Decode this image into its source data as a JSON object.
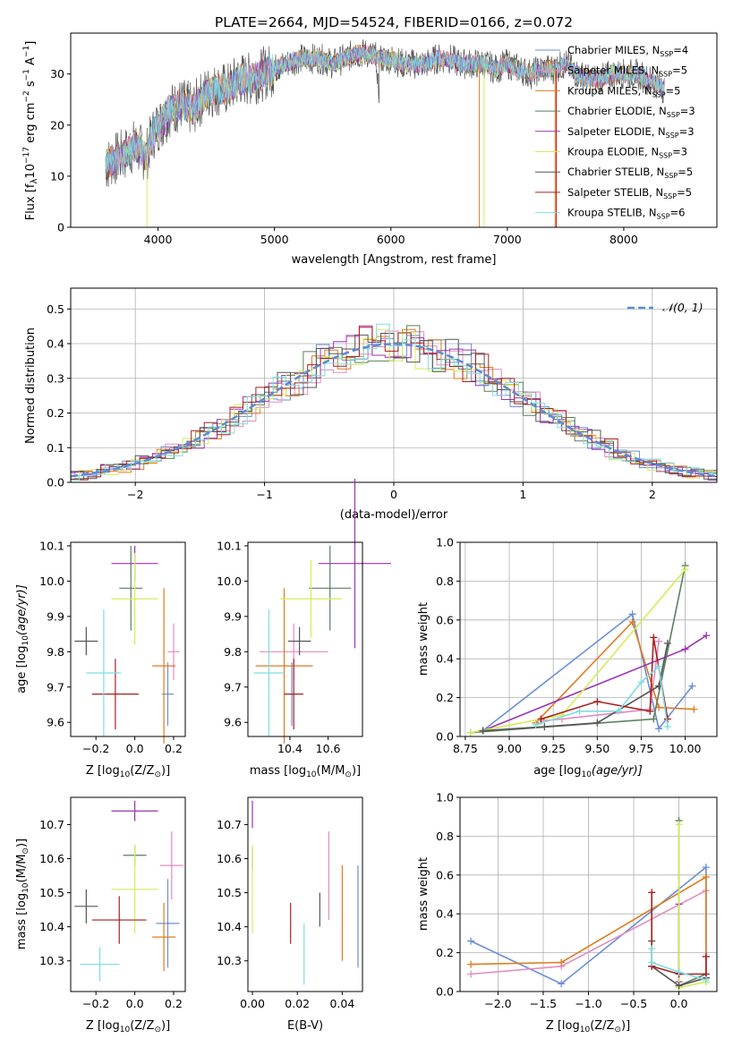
{
  "figure": {
    "title": "PLATE=2664, MJD=54524, FIBERID=0166, z=0.072"
  },
  "colors": {
    "chabrier_miles": "#6a8fd8",
    "salpeter_miles": "#e38bc1",
    "kroupa_miles": "#e07b1f",
    "chabrier_elodie": "#5a7f5f",
    "salpeter_elodie": "#9b33b5",
    "kroupa_elodie": "#d4ec5a",
    "chabrier_stelib": "#555555",
    "salpeter_stelib": "#aa1f1f",
    "kroupa_stelib": "#7fdde2"
  },
  "chart_data": [
    {
      "id": "spectrum",
      "type": "line",
      "xlabel": "wavelength [Angstrom, rest frame]",
      "ylabel_main": "Flux [f",
      "ylabel_tail": "10",
      "ylabel_exp1": "−17",
      "ylabel_mid": " erg cm",
      "ylabel_exp2": "−2",
      "ylabel_s": " s",
      "ylabel_exp3": "−1",
      "ylabel_a": " A",
      "ylabel_exp4": "−1",
      "ylabel_end": "]",
      "xlim": [
        3250,
        8800
      ],
      "ylim": [
        0,
        38
      ],
      "xticks": [
        4000,
        5000,
        6000,
        7000,
        8000
      ],
      "yticks": [
        0,
        10,
        20,
        30
      ],
      "grid": false,
      "legend_position": "top-right",
      "envelope": {
        "x": [
          3550,
          3600,
          3700,
          3800,
          3900,
          3950,
          4000,
          4050,
          4100,
          4200,
          4300,
          4400,
          4500,
          4600,
          4700,
          4800,
          4900,
          5000,
          5100,
          5200,
          5300,
          5400,
          5500,
          5600,
          5700,
          5800,
          5900,
          6000,
          6100,
          6200,
          6300,
          6400,
          6500,
          6600,
          6700,
          6800,
          6900,
          7000,
          7100,
          7200,
          7300,
          7400,
          7500,
          7600,
          7700,
          7800,
          7900,
          8000,
          8100,
          8200,
          8300,
          8350
        ],
        "y": [
          12,
          13,
          14,
          16,
          14,
          18,
          20,
          21,
          23,
          24,
          23,
          26,
          27,
          27,
          29,
          29,
          30,
          31,
          32,
          33,
          33,
          33,
          32,
          33,
          34,
          34,
          33,
          33,
          32,
          32,
          32,
          33,
          33,
          32,
          32,
          32,
          31,
          32,
          31,
          30,
          31,
          31,
          32,
          30,
          29,
          29,
          30,
          30,
          30,
          29,
          28,
          27
        ]
      },
      "legend": [
        {
          "label": "Chabrier MILES, N",
          "sub": "SSP",
          "tail": "=4",
          "color_key": "chabrier_miles"
        },
        {
          "label": "Salpeter MILES, N",
          "sub": "SSP",
          "tail": "=5",
          "color_key": "salpeter_miles"
        },
        {
          "label": "Kroupa MILES, N",
          "sub": "SSP",
          "tail": "=5",
          "color_key": "kroupa_miles"
        },
        {
          "label": "Chabrier ELODIE, N",
          "sub": "SSP",
          "tail": "=3",
          "color_key": "chabrier_elodie"
        },
        {
          "label": "Salpeter ELODIE, N",
          "sub": "SSP",
          "tail": "=3",
          "color_key": "salpeter_elodie"
        },
        {
          "label": "Kroupa ELODIE, N",
          "sub": "SSP",
          "tail": "=3",
          "color_key": "kroupa_elodie"
        },
        {
          "label": "Chabrier STELIB, N",
          "sub": "SSP",
          "tail": "=5",
          "color_key": "chabrier_stelib"
        },
        {
          "label": "Salpeter STELIB, N",
          "sub": "SSP",
          "tail": "=5",
          "color_key": "salpeter_stelib"
        },
        {
          "label": "Kroupa STELIB, N",
          "sub": "SSP",
          "tail": "=6",
          "color_key": "kroupa_stelib"
        }
      ]
    },
    {
      "id": "residuals",
      "type": "histogram",
      "xlabel": "(data-model)/error",
      "ylabel": "Normed distribution",
      "xlim": [
        -2.5,
        2.5
      ],
      "ylim": [
        0,
        0.56
      ],
      "xticks": [
        -2,
        -1,
        0,
        1,
        2
      ],
      "yticks": [
        0.0,
        0.1,
        0.2,
        0.3,
        0.4,
        0.5
      ],
      "grid": true,
      "legend_position": "top-right",
      "legend_label": "𝒩(0, 1)",
      "bin_width": 0.1
    },
    {
      "id": "age_vs_z",
      "type": "scatter",
      "xlabel": "Z [log",
      "ylabel": "age  [log",
      "xlim": [
        -0.33,
        0.26
      ],
      "ylim": [
        9.56,
        10.11
      ],
      "xticks": [
        -0.2,
        0.0,
        0.2
      ],
      "yticks": [
        9.6,
        9.7,
        9.8,
        9.9,
        10.0,
        10.1
      ],
      "grid": false,
      "points": [
        {
          "x": 0.17,
          "xerr": 0.03,
          "y": 9.68,
          "yerr": 0.09,
          "color_key": "chabrier_miles"
        },
        {
          "x": 0.2,
          "xerr": 0.03,
          "y": 9.8,
          "yerr": 0.08,
          "color_key": "salpeter_miles"
        },
        {
          "x": 0.15,
          "xerr": 0.06,
          "y": 9.76,
          "yerr": 0.22,
          "color_key": "kroupa_miles"
        },
        {
          "x": -0.02,
          "xerr": 0.06,
          "y": 9.98,
          "yerr": 0.12,
          "color_key": "chabrier_elodie"
        },
        {
          "x": 0.0,
          "xerr": 0.12,
          "y": 10.05,
          "yerr": 0.05,
          "color_key": "salpeter_elodie"
        },
        {
          "x": 0.0,
          "xerr": 0.12,
          "y": 9.95,
          "yerr": 0.13,
          "color_key": "kroupa_elodie"
        },
        {
          "x": -0.25,
          "xerr": 0.06,
          "y": 9.83,
          "yerr": 0.04,
          "color_key": "chabrier_stelib"
        },
        {
          "x": -0.1,
          "xerr": 0.12,
          "y": 9.68,
          "yerr": 0.1,
          "color_key": "salpeter_stelib"
        },
        {
          "x": -0.16,
          "xerr": 0.09,
          "y": 9.74,
          "yerr": 0.18,
          "color_key": "kroupa_stelib"
        }
      ]
    },
    {
      "id": "age_vs_mass",
      "type": "scatter",
      "xlabel": "mass [log",
      "xlim": [
        10.18,
        10.78
      ],
      "ylim": [
        9.56,
        10.11
      ],
      "xticks": [
        10.4,
        10.6
      ],
      "yticks": [
        9.6,
        9.7,
        9.8,
        9.9,
        10.0,
        10.1
      ],
      "grid": false,
      "points": [
        {
          "x": 10.41,
          "xerr": 0.01,
          "y": 9.68,
          "yerr": 0.09,
          "color_key": "chabrier_miles"
        },
        {
          "x": 10.42,
          "xerr": 0.18,
          "y": 9.8,
          "yerr": 0.08,
          "color_key": "salpeter_miles"
        },
        {
          "x": 10.37,
          "xerr": 0.15,
          "y": 9.76,
          "yerr": 0.22,
          "color_key": "kroupa_miles"
        },
        {
          "x": 10.61,
          "xerr": 0.11,
          "y": 9.98,
          "yerr": 0.12,
          "color_key": "chabrier_elodie"
        },
        {
          "x": 10.74,
          "xerr": 0.19,
          "y": 10.05,
          "yerr": 0.24,
          "color_key": "salpeter_elodie"
        },
        {
          "x": 10.51,
          "xerr": 0.16,
          "y": 9.95,
          "yerr": 0.11,
          "color_key": "kroupa_elodie"
        },
        {
          "x": 10.45,
          "xerr": 0.06,
          "y": 9.83,
          "yerr": 0.04,
          "color_key": "chabrier_stelib"
        },
        {
          "x": 10.42,
          "xerr": 0.05,
          "y": 9.68,
          "yerr": 0.1,
          "color_key": "salpeter_stelib"
        },
        {
          "x": 10.29,
          "xerr": 0.08,
          "y": 9.74,
          "yerr": 0.18,
          "color_key": "kroupa_stelib"
        }
      ]
    },
    {
      "id": "weight_vs_age",
      "type": "line",
      "xlabel": "age  [log",
      "ylabel": "mass weight",
      "xlim": [
        8.72,
        10.18
      ],
      "ylim": [
        0,
        1
      ],
      "xticks": [
        8.75,
        9.0,
        9.25,
        9.5,
        9.75,
        10.0
      ],
      "yticks": [
        0.0,
        0.2,
        0.4,
        0.6,
        0.8,
        1.0
      ],
      "grid": true,
      "series": [
        {
          "color_key": "chabrier_miles",
          "x": [
            8.85,
            9.7,
            9.85,
            10.04
          ],
          "y": [
            0.03,
            0.63,
            0.04,
            0.26
          ]
        },
        {
          "color_key": "salpeter_miles",
          "x": [
            9.18,
            9.3,
            9.8,
            9.85
          ],
          "y": [
            0.08,
            0.09,
            0.14,
            0.49
          ]
        },
        {
          "color_key": "kroupa_miles",
          "x": [
            9.15,
            9.7,
            9.85,
            10.05
          ],
          "y": [
            0.07,
            0.59,
            0.15,
            0.14
          ]
        },
        {
          "color_key": "chabrier_elodie",
          "x": [
            8.78,
            9.82,
            10.0
          ],
          "y": [
            0.02,
            0.09,
            0.88
          ]
        },
        {
          "color_key": "salpeter_elodie",
          "x": [
            8.85,
            10.0,
            10.12
          ],
          "y": [
            0.03,
            0.45,
            0.52
          ]
        },
        {
          "color_key": "kroupa_elodie",
          "x": [
            8.78,
            9.3,
            10.0
          ],
          "y": [
            0.02,
            0.11,
            0.86
          ]
        },
        {
          "color_key": "chabrier_stelib",
          "x": [
            8.85,
            9.2,
            9.5,
            9.85,
            9.9
          ],
          "y": [
            0.03,
            0.05,
            0.07,
            0.26,
            0.48
          ]
        },
        {
          "color_key": "salpeter_stelib",
          "x": [
            9.18,
            9.5,
            9.8,
            9.82,
            9.9
          ],
          "y": [
            0.09,
            0.18,
            0.13,
            0.51,
            0.09
          ]
        },
        {
          "color_key": "kroupa_stelib",
          "x": [
            9.15,
            9.4,
            9.62,
            9.75,
            9.85,
            9.9
          ],
          "y": [
            0.06,
            0.13,
            0.13,
            0.28,
            0.36,
            0.05
          ]
        }
      ]
    },
    {
      "id": "mass_vs_z",
      "type": "scatter",
      "xlabel": "Z [log",
      "ylabel": "mass [log",
      "xlim": [
        -0.33,
        0.26
      ],
      "ylim": [
        10.21,
        10.78
      ],
      "xticks": [
        -0.2,
        0.0,
        0.2
      ],
      "yticks": [
        10.3,
        10.4,
        10.5,
        10.6,
        10.7
      ],
      "grid": false,
      "points": [
        {
          "x": 0.17,
          "xerr": 0.06,
          "y": 10.41,
          "yerr": 0.13,
          "color_key": "chabrier_miles"
        },
        {
          "x": 0.19,
          "xerr": 0.06,
          "y": 10.58,
          "yerr": 0.1,
          "color_key": "salpeter_miles"
        },
        {
          "x": 0.15,
          "xerr": 0.06,
          "y": 10.37,
          "yerr": 0.1,
          "color_key": "kroupa_miles"
        },
        {
          "x": 0.0,
          "xerr": 0.06,
          "y": 10.61,
          "yerr": 0.03,
          "color_key": "chabrier_elodie"
        },
        {
          "x": 0.0,
          "xerr": 0.12,
          "y": 10.74,
          "yerr": 0.03,
          "color_key": "salpeter_elodie"
        },
        {
          "x": 0.0,
          "xerr": 0.12,
          "y": 10.51,
          "yerr": 0.13,
          "color_key": "kroupa_elodie"
        },
        {
          "x": -0.25,
          "xerr": 0.06,
          "y": 10.46,
          "yerr": 0.05,
          "color_key": "chabrier_stelib"
        },
        {
          "x": -0.08,
          "xerr": 0.14,
          "y": 10.42,
          "yerr": 0.07,
          "color_key": "salpeter_stelib"
        },
        {
          "x": -0.18,
          "xerr": 0.1,
          "y": 10.29,
          "yerr": 0.05,
          "color_key": "kroupa_stelib"
        }
      ]
    },
    {
      "id": "mass_vs_ebv",
      "type": "scatter",
      "xlabel": "E(B-V)",
      "xlim": [
        -0.002,
        0.049
      ],
      "ylim": [
        10.21,
        10.78
      ],
      "xticks": [
        0.0,
        0.02,
        0.04
      ],
      "yticks": [
        10.3,
        10.4,
        10.5,
        10.6,
        10.7
      ],
      "grid": false,
      "points": [
        {
          "x": 0.047,
          "y": 10.43,
          "yerr": 0.15,
          "color_key": "chabrier_miles"
        },
        {
          "x": 0.034,
          "y": 10.55,
          "yerr": 0.13,
          "color_key": "salpeter_miles"
        },
        {
          "x": 0.04,
          "y": 10.44,
          "yerr": 0.14,
          "color_key": "kroupa_miles"
        },
        {
          "x": 0.0,
          "y": 10.6,
          "yerr": 0.03,
          "color_key": "chabrier_elodie"
        },
        {
          "x": 0.0,
          "y": 10.73,
          "yerr": 0.04,
          "color_key": "salpeter_elodie"
        },
        {
          "x": 0.0,
          "y": 10.51,
          "yerr": 0.13,
          "color_key": "kroupa_elodie"
        },
        {
          "x": 0.03,
          "y": 10.45,
          "yerr": 0.05,
          "color_key": "chabrier_stelib"
        },
        {
          "x": 0.017,
          "y": 10.41,
          "yerr": 0.06,
          "color_key": "salpeter_stelib"
        },
        {
          "x": 0.023,
          "y": 10.32,
          "yerr": 0.09,
          "color_key": "kroupa_stelib"
        }
      ]
    },
    {
      "id": "weight_vs_z",
      "type": "line",
      "xlabel": "Z [log",
      "ylabel": "mass weight",
      "xlim": [
        -2.42,
        0.42
      ],
      "ylim": [
        0,
        1
      ],
      "xticks": [
        -2.0,
        -1.5,
        -1.0,
        -0.5,
        0.0
      ],
      "yticks": [
        0.0,
        0.2,
        0.4,
        0.6,
        0.8,
        1.0
      ],
      "grid": true,
      "series": [
        {
          "color_key": "chabrier_miles",
          "x": [
            -2.3,
            -1.3,
            0.3,
            0.3
          ],
          "y": [
            0.26,
            0.04,
            0.64,
            0.07
          ]
        },
        {
          "color_key": "salpeter_miles",
          "x": [
            -2.3,
            -1.3,
            0.3
          ],
          "y": [
            0.09,
            0.13,
            0.52
          ]
        },
        {
          "color_key": "kroupa_miles",
          "x": [
            -2.3,
            -1.3,
            0.3,
            0.3
          ],
          "y": [
            0.14,
            0.15,
            0.59,
            0.05
          ]
        },
        {
          "color_key": "chabrier_elodie",
          "x": [
            0.0,
            0.0,
            0.3
          ],
          "y": [
            0.88,
            0.03,
            0.09
          ]
        },
        {
          "color_key": "salpeter_elodie",
          "x": [
            0.0,
            0.0
          ],
          "y": [
            0.45,
            0.05
          ]
        },
        {
          "color_key": "kroupa_elodie",
          "x": [
            0.0,
            0.0,
            0.3
          ],
          "y": [
            0.86,
            0.02,
            0.05
          ]
        },
        {
          "color_key": "chabrier_stelib",
          "x": [
            -0.3,
            -0.3,
            0.0,
            0.3
          ],
          "y": [
            0.26,
            0.13,
            0.03,
            0.07
          ]
        },
        {
          "color_key": "salpeter_stelib",
          "x": [
            -0.3,
            -0.3,
            0.0,
            0.3,
            0.3
          ],
          "y": [
            0.51,
            0.13,
            0.09,
            0.09,
            0.18
          ]
        },
        {
          "color_key": "kroupa_stelib",
          "x": [
            -0.3,
            -0.3,
            0.0,
            0.3
          ],
          "y": [
            0.22,
            0.15,
            0.1,
            0.06
          ]
        }
      ]
    }
  ],
  "units": {
    "lambda": "λ",
    "z_sun": "(Z/Z",
    "sun": "⊙",
    "close": ")]",
    "ten": "10",
    "age_unit": "(age/yr)]",
    "m_sun": "(M/M"
  }
}
